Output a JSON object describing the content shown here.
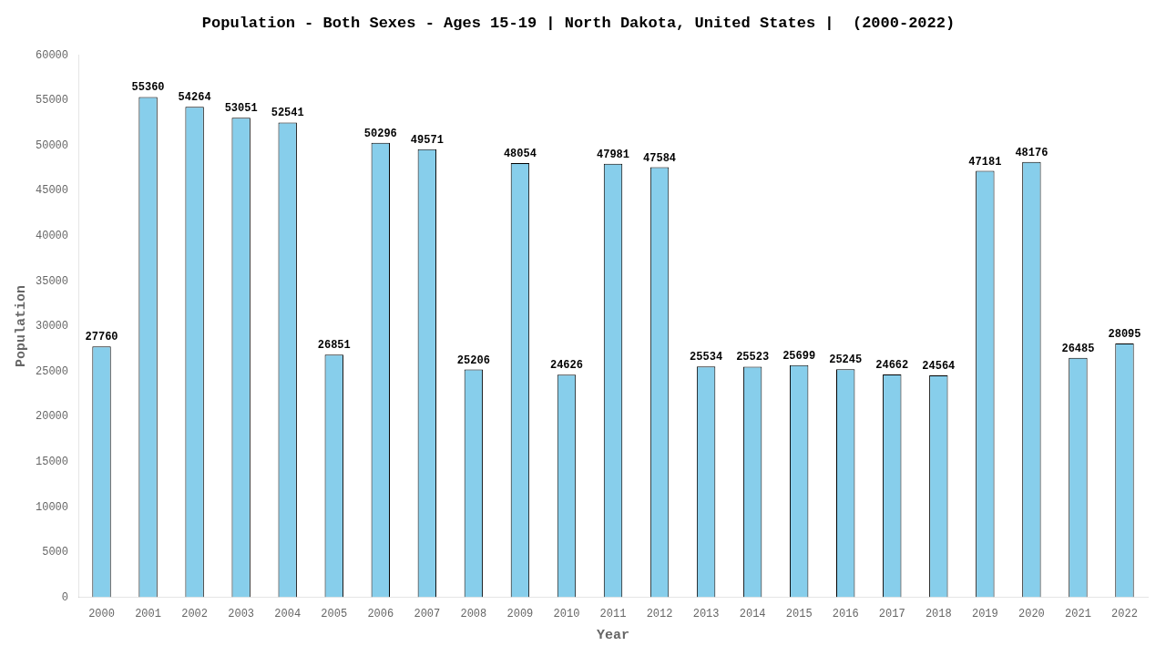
{
  "chart_data": {
    "type": "bar",
    "title": "Population - Both Sexes - Ages 15-19 | North Dakota, United States |  (2000-2022)",
    "x_label": "Year",
    "y_label": "Population",
    "categories": [
      "2000",
      "2001",
      "2002",
      "2003",
      "2004",
      "2005",
      "2006",
      "2007",
      "2008",
      "2009",
      "2010",
      "2011",
      "2012",
      "2013",
      "2014",
      "2015",
      "2016",
      "2017",
      "2018",
      "2019",
      "2020",
      "2021",
      "2022"
    ],
    "values": [
      27760,
      55360,
      54264,
      53051,
      52541,
      26851,
      50296,
      49571,
      25206,
      48054,
      24626,
      47981,
      47584,
      25534,
      25523,
      25699,
      25245,
      24662,
      24564,
      47181,
      48176,
      26485,
      28095
    ],
    "color": "#87ceeb",
    "ylim": [
      0,
      60000
    ],
    "yticks": [
      0,
      5000,
      10000,
      15000,
      20000,
      25000,
      30000,
      35000,
      40000,
      45000,
      50000,
      55000,
      60000
    ],
    "grid": false,
    "data_labels": true
  }
}
